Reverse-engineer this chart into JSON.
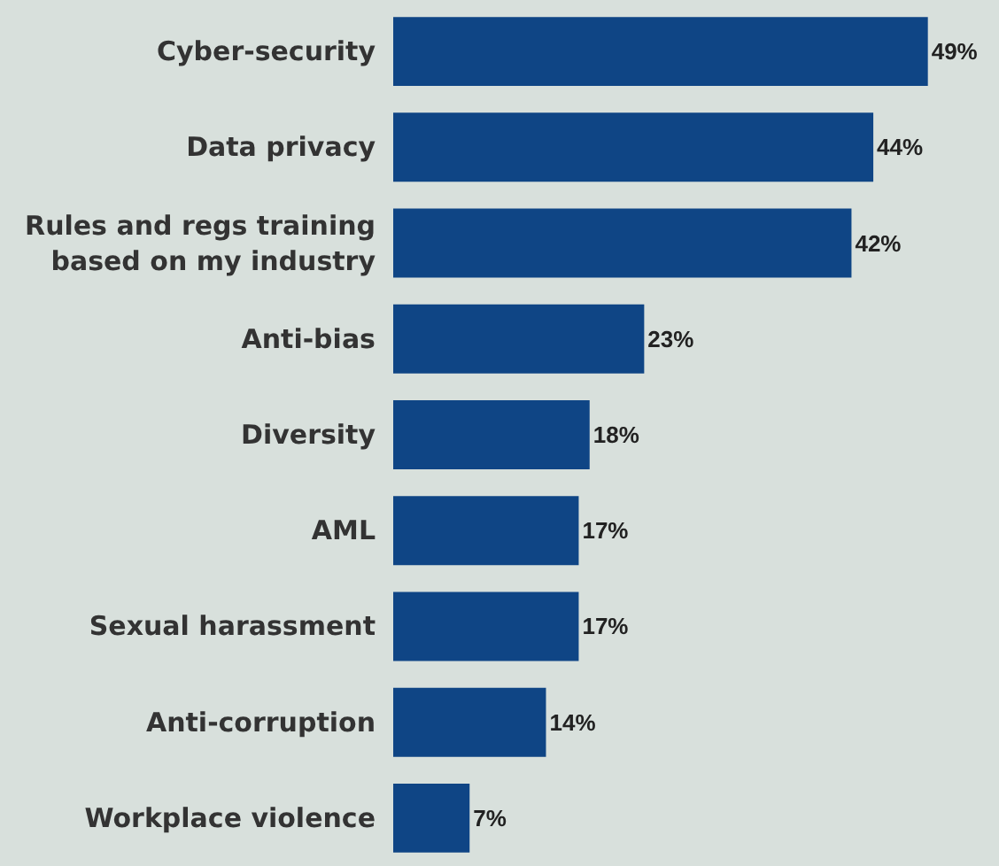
{
  "chart_data": {
    "type": "bar",
    "orientation": "horizontal",
    "categories": [
      "Cyber-security",
      "Data privacy",
      "Rules and regs training\nbased on my industry",
      "Anti-bias",
      "Diversity",
      "AML",
      "Sexual harassment",
      "Anti-corruption",
      "Workplace violence"
    ],
    "values": [
      49,
      44,
      42,
      23,
      18,
      17,
      17,
      14,
      7
    ],
    "value_labels": [
      "49%",
      "44%",
      "42%",
      "23%",
      "18%",
      "17%",
      "17%",
      "14%",
      "7%"
    ],
    "color": "#0f4585"
  }
}
